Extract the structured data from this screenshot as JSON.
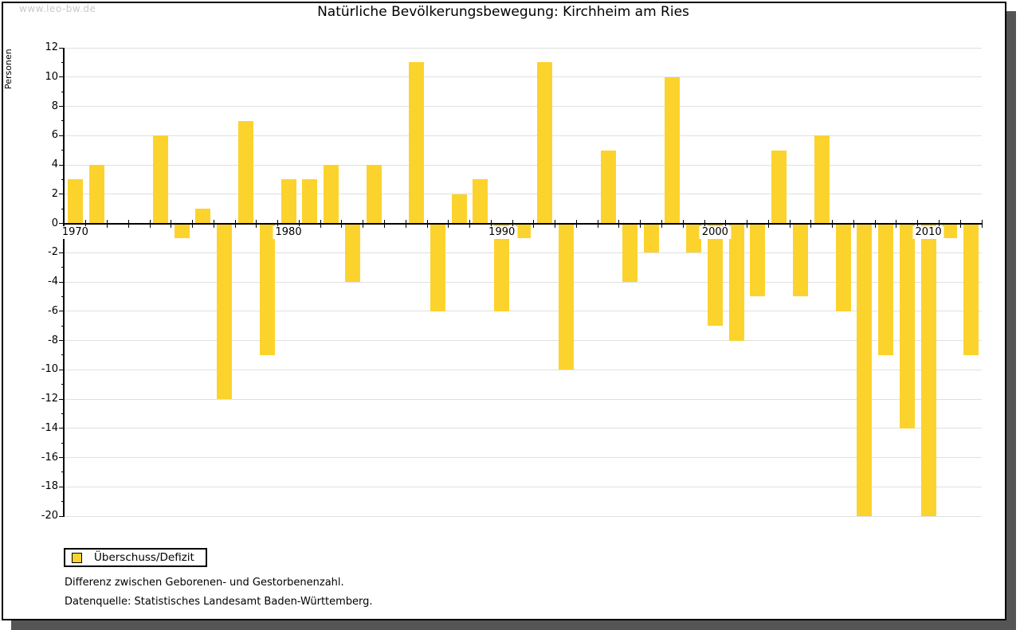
{
  "watermark": "www.leo-bw.de",
  "title": "Natürliche Bevölkerungsbewegung: Kirchheim am Ries",
  "legend": {
    "label": "Überschuss/Defizit",
    "swatch_color": "#fcd32d"
  },
  "footnotes": [
    "Differenz zwischen Geborenen- und Gestorbenenzahl.",
    "Datenquelle: Statistisches Landesamt Baden-Württemberg."
  ],
  "chart_data": {
    "type": "bar",
    "title": "Natürliche Bevölkerungsbewegung: Kirchheim am Ries",
    "xlabel": "",
    "ylabel": "Personen",
    "ylim": [
      -20,
      12
    ],
    "ytick_step_labeled": 2,
    "ytick_step_minor": 1,
    "grid": "horizontal",
    "legend_position": "bottom-left",
    "bar_color": "#fcd32d",
    "axis_color": "#000000",
    "gridline_color": "#e0e0e0",
    "series_name": "Überschuss/Defizit",
    "years": [
      1970,
      1971,
      1972,
      1973,
      1974,
      1975,
      1976,
      1977,
      1978,
      1979,
      1980,
      1981,
      1982,
      1983,
      1984,
      1985,
      1986,
      1987,
      1988,
      1989,
      1990,
      1991,
      1992,
      1993,
      1994,
      1995,
      1996,
      1997,
      1998,
      1999,
      2000,
      2001,
      2002,
      2003,
      2004,
      2005,
      2006,
      2007,
      2008,
      2009,
      2010,
      2011,
      2012
    ],
    "values": [
      3,
      4,
      0,
      0,
      6,
      -1,
      1,
      -12,
      7,
      -9,
      3,
      3,
      4,
      -4,
      4,
      0,
      11,
      -6,
      2,
      3,
      -6,
      -1,
      11,
      -10,
      0,
      5,
      -4,
      -2,
      10,
      -2,
      -7,
      -8,
      -5,
      5,
      -5,
      6,
      -6,
      -20,
      -9,
      -14,
      -20,
      -1,
      -9
    ],
    "xtick_labeled_years": [
      1970,
      1980,
      1990,
      2000,
      2010
    ]
  }
}
